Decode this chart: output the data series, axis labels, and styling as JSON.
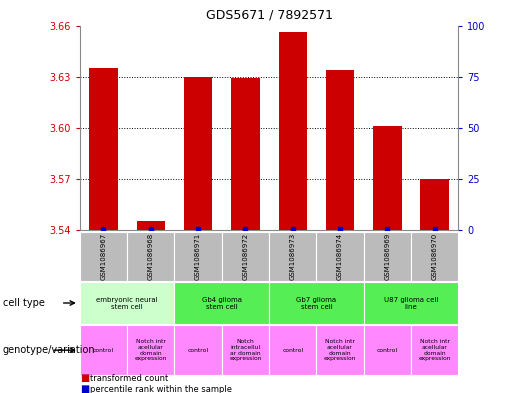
{
  "title": "GDS5671 / 7892571",
  "samples": [
    "GSM1086967",
    "GSM1086968",
    "GSM1086971",
    "GSM1086972",
    "GSM1086973",
    "GSM1086974",
    "GSM1086969",
    "GSM1086970"
  ],
  "transformed_counts": [
    3.635,
    3.545,
    3.63,
    3.629,
    3.656,
    3.634,
    3.601,
    3.57
  ],
  "ylim_left": [
    3.54,
    3.66
  ],
  "ylim_right": [
    0,
    100
  ],
  "yticks_left": [
    3.54,
    3.57,
    3.6,
    3.63,
    3.66
  ],
  "yticks_right": [
    0,
    25,
    50,
    75,
    100
  ],
  "cell_types": [
    {
      "label": "embryonic neural\nstem cell",
      "start": 0,
      "end": 2,
      "color": "#ccffcc"
    },
    {
      "label": "Gb4 glioma\nstem cell",
      "start": 2,
      "end": 4,
      "color": "#55ee55"
    },
    {
      "label": "Gb7 glioma\nstem cell",
      "start": 4,
      "end": 6,
      "color": "#55ee55"
    },
    {
      "label": "U87 glioma cell\nline",
      "start": 6,
      "end": 8,
      "color": "#55ee55"
    }
  ],
  "genotypes": [
    {
      "label": "control",
      "start": 0,
      "end": 1,
      "color": "#ff88ff"
    },
    {
      "label": "Notch intr\nacellular\ndomain\nexpression",
      "start": 1,
      "end": 2,
      "color": "#ff88ff"
    },
    {
      "label": "control",
      "start": 2,
      "end": 3,
      "color": "#ff88ff"
    },
    {
      "label": "Notch\nintracellul\nar domain\nexpression",
      "start": 3,
      "end": 4,
      "color": "#ff88ff"
    },
    {
      "label": "control",
      "start": 4,
      "end": 5,
      "color": "#ff88ff"
    },
    {
      "label": "Notch intr\nacellular\ndomain\nexpression",
      "start": 5,
      "end": 6,
      "color": "#ff88ff"
    },
    {
      "label": "control",
      "start": 6,
      "end": 7,
      "color": "#ff88ff"
    },
    {
      "label": "Notch intr\nacellular\ndomain\nexpression",
      "start": 7,
      "end": 8,
      "color": "#ff88ff"
    }
  ],
  "bar_color": "#cc0000",
  "dot_color": "#0000cc",
  "left_axis_color": "#cc0000",
  "right_axis_color": "#0000cc",
  "sample_bg_color": "#bbbbbb",
  "base_value": 3.54,
  "bar_width": 0.6
}
